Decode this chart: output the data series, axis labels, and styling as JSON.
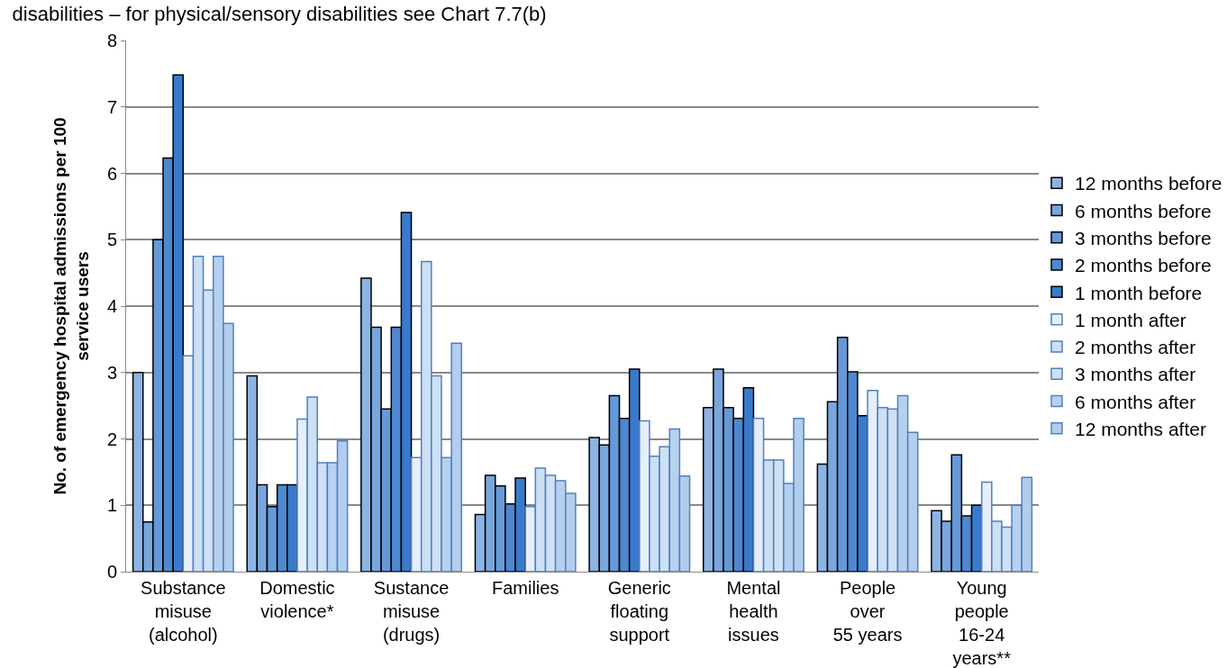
{
  "chart_data": {
    "type": "bar",
    "title": "disabilities – for physical/sensory disabilities see Chart 7.7(b)",
    "ylabel": "No. of emergency hospital admissions per 100\nservice users",
    "categories": [
      "Substance\nmisuse\n(alcohol)",
      "Domestic\nviolence*",
      "Sustance\nmisuse\n(drugs)",
      "Families",
      "Generic\nfloating\nsupport",
      "Mental\nhealth\nissues",
      "People\nover\n55 years",
      "Young\npeople\n16-24\nyears**"
    ],
    "series": [
      {
        "name": "12 months before",
        "color": "#8db3e2",
        "values": [
          3.0,
          2.95,
          4.42,
          0.86,
          2.02,
          2.47,
          1.62,
          0.92
        ]
      },
      {
        "name": "6 months before",
        "color": "#79a6dc",
        "values": [
          0.75,
          1.31,
          3.68,
          1.45,
          1.91,
          3.05,
          2.56,
          0.76
        ]
      },
      {
        "name": "3 months before",
        "color": "#6699d8",
        "values": [
          5.0,
          0.98,
          2.45,
          1.29,
          2.65,
          2.47,
          3.53,
          1.76
        ]
      },
      {
        "name": "2 months before",
        "color": "#4f87d0",
        "values": [
          6.23,
          1.31,
          3.68,
          1.02,
          2.31,
          2.31,
          3.01,
          0.84
        ]
      },
      {
        "name": "1 month before",
        "color": "#3a7acd",
        "values": [
          7.48,
          1.31,
          5.41,
          1.41,
          3.05,
          2.77,
          2.35,
          1.0
        ]
      },
      {
        "name": "1 month after",
        "color": "#e6eef9",
        "values": [
          3.25,
          2.3,
          1.72,
          0.98,
          2.27,
          2.31,
          2.73,
          1.35
        ]
      },
      {
        "name": "2 months after",
        "color": "#cddff3",
        "values": [
          4.75,
          2.63,
          4.67,
          1.56,
          1.74,
          1.68,
          2.47,
          0.76
        ]
      },
      {
        "name": "3 months after",
        "color": "#cfe0f4",
        "values": [
          4.24,
          1.64,
          2.95,
          1.45,
          1.88,
          1.68,
          2.45,
          0.67
        ]
      },
      {
        "name": "6 months after",
        "color": "#b7d0ee",
        "values": [
          4.75,
          1.64,
          1.72,
          1.37,
          2.15,
          1.33,
          2.65,
          1.0
        ]
      },
      {
        "name": "12 months after",
        "color": "#b3cdec",
        "values": [
          3.74,
          1.97,
          3.44,
          1.18,
          1.44,
          2.31,
          2.1,
          1.42
        ]
      }
    ],
    "ylim": [
      0,
      8
    ],
    "yticks": [
      0,
      1,
      2,
      3,
      4,
      5,
      6,
      7,
      8
    ],
    "grid": "y",
    "legend": "right"
  }
}
